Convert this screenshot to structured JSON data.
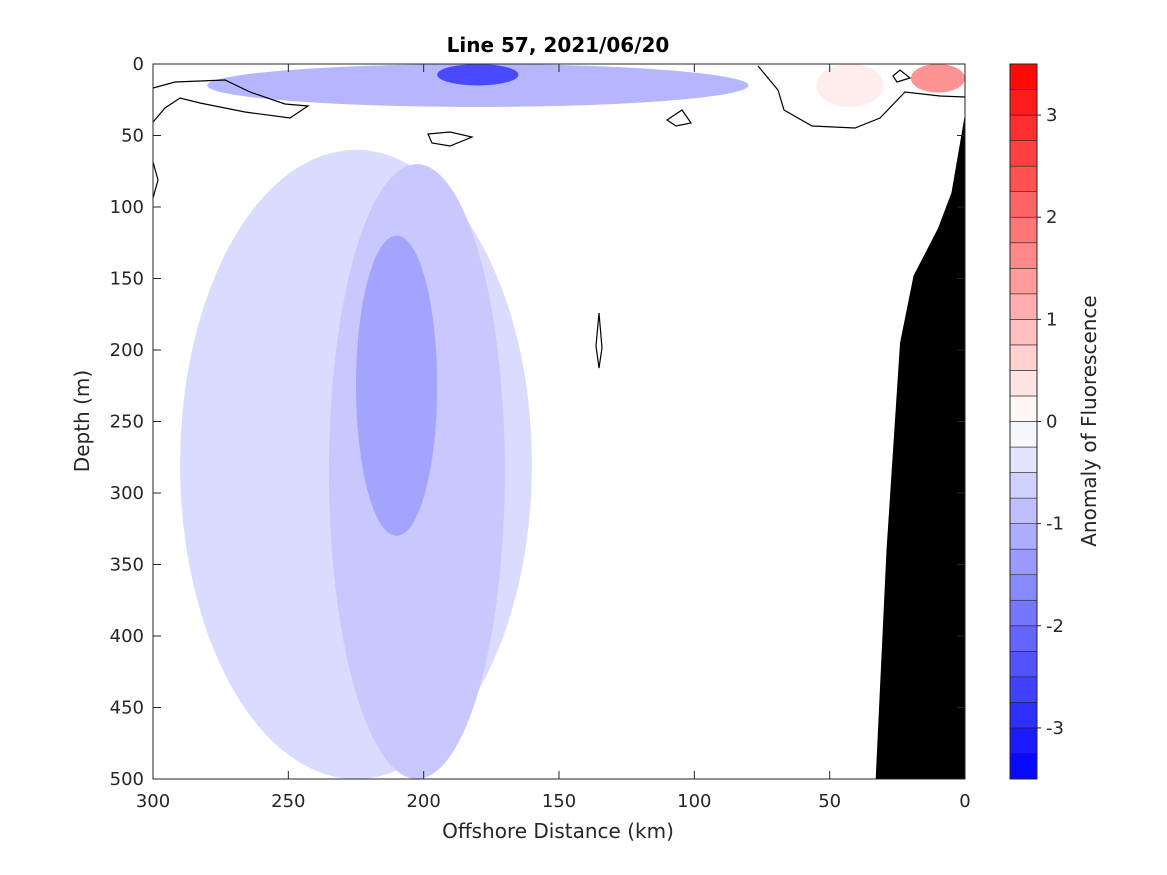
{
  "chart_data": {
    "type": "heatmap",
    "title": "Line 57, 2021/06/20",
    "xlabel": "Offshore Distance (km)",
    "ylabel": "Depth (m)",
    "colorbar_label": "Anomaly of Fluorescence",
    "xlim": [
      300,
      0
    ],
    "ylim": [
      0,
      500
    ],
    "x_ticks": [
      300,
      250,
      200,
      150,
      100,
      50,
      0
    ],
    "y_ticks": [
      0,
      50,
      100,
      150,
      200,
      250,
      300,
      350,
      400,
      450,
      500
    ],
    "colorbar_range": [
      -3.5,
      3.5
    ],
    "colorbar_step": 0.25,
    "colorbar_ticks": [
      -3,
      -2,
      -1,
      0,
      1,
      2,
      3
    ],
    "colors": {
      "negative_extreme": "#0000ff",
      "positive_extreme": "#ff0000",
      "zero": "#ffffff",
      "bathymetry": "#000000"
    },
    "regions": [
      {
        "name": "surface minimum",
        "x": [
          195,
          165
        ],
        "depth": [
          0,
          15
        ],
        "value": -2.5
      },
      {
        "name": "surface band",
        "x": [
          280,
          80
        ],
        "depth": [
          0,
          30
        ],
        "value": -1.0
      },
      {
        "name": "outer low",
        "x": [
          290,
          160
        ],
        "depth": [
          60,
          500
        ],
        "value": -0.5
      },
      {
        "name": "column low",
        "x": [
          235,
          170
        ],
        "depth": [
          70,
          500
        ],
        "value": -0.75
      },
      {
        "name": "column core",
        "x": [
          225,
          195
        ],
        "depth": [
          120,
          330
        ],
        "value": -1.25
      },
      {
        "name": "nearshore high",
        "x": [
          20,
          0
        ],
        "depth": [
          0,
          20
        ],
        "value": 1.5
      },
      {
        "name": "nearshore weak high",
        "x": [
          55,
          30
        ],
        "depth": [
          0,
          30
        ],
        "value": 0.25
      }
    ],
    "bathymetry": [
      {
        "x": 33,
        "depth": 500
      },
      {
        "x": 29,
        "depth": 340
      },
      {
        "x": 24,
        "depth": 195
      },
      {
        "x": 19,
        "depth": 148
      },
      {
        "x": 10,
        "depth": 115
      },
      {
        "x": 5,
        "depth": 90
      },
      {
        "x": 0,
        "depth": 35
      }
    ]
  }
}
